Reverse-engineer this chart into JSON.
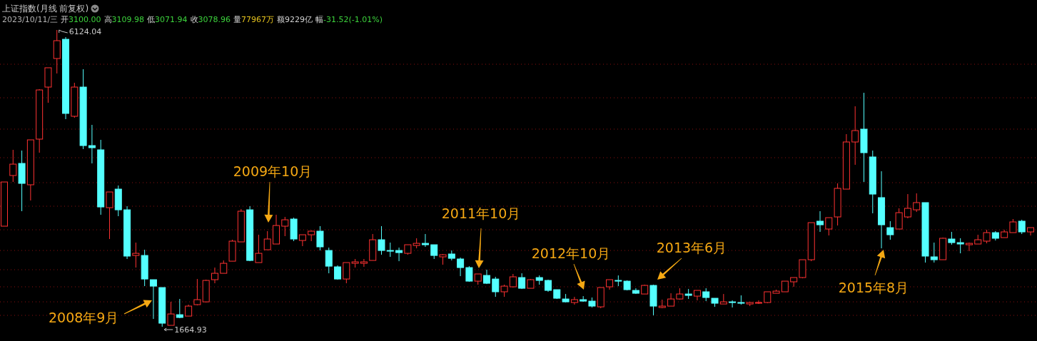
{
  "chart_data": {
    "type": "candlestick",
    "title": "上证指数(月线 前复权)",
    "subtitle": "2023/10/11/三 开3100.00 高3109.98 低3071.94 收3078.96 量77967万 额9229亿 幅-31.52(-1.01%)",
    "categories": [
      null,
      null,
      null,
      null,
      null,
      null,
      null,
      null,
      null,
      null,
      null,
      null,
      null,
      null,
      null,
      null,
      null,
      null,
      null,
      null,
      null,
      null,
      null,
      null,
      null,
      null,
      null,
      null,
      null,
      null,
      null,
      null,
      null,
      null,
      null,
      null,
      null,
      null,
      null,
      null,
      null,
      null,
      null,
      null,
      null,
      null,
      null,
      null,
      null,
      null,
      null,
      null,
      null,
      null,
      null,
      null,
      null,
      null,
      null,
      null,
      null,
      null,
      null,
      null,
      null,
      null,
      null,
      null,
      null,
      null,
      null,
      null,
      null,
      null,
      null,
      null,
      null,
      null,
      null,
      null,
      null,
      null,
      null,
      null,
      null,
      null,
      null,
      null,
      null,
      null,
      null,
      null,
      null,
      null,
      null,
      null,
      null,
      null,
      null,
      null,
      null,
      null,
      null,
      null,
      null,
      null,
      null,
      null,
      null,
      null,
      null,
      null,
      null,
      null,
      null,
      null,
      null,
      null
    ],
    "ohlc": [
      [
        3176,
        3840,
        3176,
        3840
      ],
      [
        3937,
        4323,
        3840,
        4108
      ],
      [
        4119,
        4312,
        3401,
        3819
      ],
      [
        3798,
        4473,
        3562,
        4473
      ],
      [
        4484,
        5234,
        4280,
        5223
      ],
      [
        5266,
        5556,
        5030,
        5556
      ],
      [
        5695,
        6124.04,
        5470,
        5963
      ],
      [
        5984,
        6017,
        4784,
        4870
      ],
      [
        4827,
        5330,
        4805,
        5266
      ],
      [
        5266,
        5534,
        4334,
        4387
      ],
      [
        4387,
        4698,
        4119,
        4355
      ],
      [
        4323,
        4473,
        3347,
        3465
      ],
      [
        3454,
        3690,
        2983,
        3690
      ],
      [
        3733,
        3787,
        3326,
        3422
      ],
      [
        3422,
        3476,
        2683,
        2726
      ],
      [
        2736,
        2929,
        2554,
        2768
      ],
      [
        2736,
        2822,
        2275,
        2382
      ],
      [
        2372,
        2372,
        1782,
        2275
      ],
      [
        2254,
        2254,
        1664.93,
        1718
      ],
      [
        1686,
        2039,
        1686,
        1857
      ],
      [
        1846,
        2082,
        1793,
        1804
      ],
      [
        1825,
        1997,
        1825,
        1975
      ],
      [
        1997,
        2382,
        1986,
        2072
      ],
      [
        2039,
        2372,
        2029,
        2361
      ],
      [
        2372,
        2554,
        2318,
        2468
      ],
      [
        2468,
        2661,
        2468,
        2618
      ],
      [
        2650,
        2972,
        2650,
        2951
      ],
      [
        2940,
        3433,
        2940,
        3401
      ],
      [
        3422,
        3476,
        2650,
        2661
      ],
      [
        2629,
        3047,
        2629,
        2768
      ],
      [
        2822,
        3101,
        2822,
        2983
      ],
      [
        2908,
        3347,
        2908,
        3186
      ],
      [
        3176,
        3315,
        3026,
        3272
      ],
      [
        3283,
        3304,
        2951,
        2983
      ],
      [
        2961,
        3047,
        2876,
        3047
      ],
      [
        3047,
        3111,
        2951,
        3101
      ],
      [
        3101,
        3176,
        2811,
        2865
      ],
      [
        2811,
        2854,
        2468,
        2575
      ],
      [
        2565,
        2586,
        2372,
        2382
      ],
      [
        2382,
        2629,
        2318,
        2629
      ],
      [
        2618,
        2683,
        2554,
        2640
      ],
      [
        2618,
        2683,
        2565,
        2640
      ],
      [
        2661,
        3058,
        2661,
        2972
      ],
      [
        2972,
        3176,
        2747,
        2811
      ],
      [
        2811,
        2929,
        2715,
        2801
      ],
      [
        2811,
        2854,
        2650,
        2779
      ],
      [
        2768,
        2897,
        2747,
        2897
      ],
      [
        2886,
        2994,
        2843,
        2918
      ],
      [
        2918,
        3058,
        2865,
        2897
      ],
      [
        2897,
        2897,
        2683,
        2736
      ],
      [
        2715,
        2758,
        2597,
        2747
      ],
      [
        2758,
        2811,
        2661,
        2693
      ],
      [
        2683,
        2704,
        2425,
        2554
      ],
      [
        2554,
        2575,
        2340,
        2350
      ],
      [
        2350,
        2458,
        2297,
        2458
      ],
      [
        2436,
        2522,
        2307,
        2318
      ],
      [
        2382,
        2415,
        2114,
        2190
      ],
      [
        2190,
        2297,
        2114,
        2275
      ],
      [
        2265,
        2458,
        2254,
        2415
      ],
      [
        2404,
        2468,
        2232,
        2243
      ],
      [
        2243,
        2382,
        2243,
        2372
      ],
      [
        2404,
        2436,
        2297,
        2361
      ],
      [
        2361,
        2372,
        2190,
        2211
      ],
      [
        2222,
        2222,
        2082,
        2093
      ],
      [
        2082,
        2157,
        2029,
        2039
      ],
      [
        2029,
        2114,
        1997,
        2072
      ],
      [
        2072,
        2125,
        2039,
        2050
      ],
      [
        2050,
        2104,
        1954,
        1975
      ],
      [
        1964,
        2254,
        1943,
        2254
      ],
      [
        2265,
        2372,
        2222,
        2372
      ],
      [
        2361,
        2436,
        2275,
        2350
      ],
      [
        2350,
        2361,
        2211,
        2222
      ],
      [
        2211,
        2243,
        2157,
        2168
      ],
      [
        2157,
        2297,
        2157,
        2286
      ],
      [
        2286,
        2297,
        1836,
        1975
      ],
      [
        1954,
        2072,
        1943,
        1975
      ],
      [
        1975,
        2168,
        1975,
        2082
      ],
      [
        2082,
        2243,
        2072,
        2157
      ],
      [
        2157,
        2232,
        2082,
        2136
      ],
      [
        2125,
        2211,
        2061,
        2211
      ],
      [
        2190,
        2243,
        2050,
        2104
      ],
      [
        2093,
        2093,
        1964,
        2018
      ],
      [
        2007,
        2157,
        2007,
        2039
      ],
      [
        2039,
        2061,
        1954,
        2029
      ],
      [
        2029,
        2136,
        1997,
        2018
      ],
      [
        2007,
        2039,
        1975,
        2029
      ],
      [
        2024,
        2061,
        2007,
        2029
      ],
      [
        2029,
        2190,
        2018,
        2190
      ],
      [
        2168,
        2222,
        2168,
        2200
      ],
      [
        2190,
        2350,
        2190,
        2350
      ],
      [
        2340,
        2404,
        2265,
        2404
      ],
      [
        2404,
        2672,
        2393,
        2672
      ],
      [
        2672,
        3229,
        2650,
        3229
      ],
      [
        3251,
        3401,
        3090,
        3197
      ],
      [
        3133,
        3304,
        3036,
        3304
      ],
      [
        3315,
        3819,
        3186,
        3744
      ],
      [
        3733,
        4559,
        3733,
        4441
      ],
      [
        4441,
        4977,
        4098,
        4612
      ],
      [
        4634,
        5180,
        3840,
        4280
      ],
      [
        4216,
        4312,
        3369,
        3658
      ],
      [
        3605,
        4001,
        2843,
        3197
      ],
      [
        3154,
        3251,
        2972,
        3047
      ],
      [
        3133,
        3444,
        3133,
        3379
      ],
      [
        3315,
        3658,
        3294,
        3444
      ],
      [
        3422,
        3669,
        3390,
        3530
      ],
      [
        3530,
        3530,
        2629,
        2726
      ],
      [
        2715,
        2929,
        2629,
        2672
      ],
      [
        2672,
        3004,
        2672,
        2994
      ],
      [
        2983,
        3090,
        2897,
        2929
      ],
      [
        2929,
        2994,
        2768,
        2908
      ],
      [
        2897,
        2929,
        2801,
        2918
      ],
      [
        2908,
        3047,
        2908,
        2972
      ],
      [
        2951,
        3122,
        2918,
        3079
      ],
      [
        3079,
        3101,
        2961,
        2994
      ],
      [
        3004,
        3122,
        3004,
        3090
      ],
      [
        3079,
        3283,
        3079,
        3240
      ],
      [
        3251,
        3272,
        3058,
        3090
      ],
      [
        3090,
        3154,
        3036,
        3154
      ]
    ],
    "colors": [
      "#ff3232",
      "#ff3232",
      "#54ffff",
      "#ff3232",
      "#ff3232",
      "#ff3232",
      "#ff3232",
      "#54ffff",
      "#ff3232",
      "#54ffff",
      "#54ffff",
      "#54ffff",
      "#ff3232",
      "#54ffff",
      "#54ffff",
      "#ff3232",
      "#54ffff",
      "#54ffff",
      "#54ffff",
      "#ff3232",
      "#54ffff",
      "#ff3232",
      "#ff3232",
      "#ff3232",
      "#ff3232",
      "#ff3232",
      "#ff3232",
      "#ff3232",
      "#54ffff",
      "#ff3232",
      "#ff3232",
      "#ff3232",
      "#ff3232",
      "#54ffff",
      "#ff3232",
      "#ff3232",
      "#54ffff",
      "#54ffff",
      "#54ffff",
      "#ff3232",
      "#ff3232",
      "#ff3232",
      "#ff3232",
      "#54ffff",
      "#54ffff",
      "#54ffff",
      "#ff3232",
      "#ff3232",
      "#54ffff",
      "#54ffff",
      "#ff3232",
      "#54ffff",
      "#54ffff",
      "#54ffff",
      "#ff3232",
      "#54ffff",
      "#54ffff",
      "#ff3232",
      "#ff3232",
      "#54ffff",
      "#ff3232",
      "#54ffff",
      "#54ffff",
      "#54ffff",
      "#54ffff",
      "#ff3232",
      "#54ffff",
      "#54ffff",
      "#ff3232",
      "#ff3232",
      "#54ffff",
      "#54ffff",
      "#54ffff",
      "#ff3232",
      "#54ffff",
      "#ff3232",
      "#ff3232",
      "#ff3232",
      "#54ffff",
      "#ff3232",
      "#54ffff",
      "#54ffff",
      "#ff3232",
      "#54ffff",
      "#54ffff",
      "#ff3232",
      "#ff3232",
      "#ff3232",
      "#ff3232",
      "#ff3232",
      "#ff3232",
      "#ff3232",
      "#ff3232",
      "#54ffff",
      "#ff3232",
      "#ff3232",
      "#ff3232",
      "#ff3232",
      "#54ffff",
      "#54ffff",
      "#54ffff",
      "#54ffff",
      "#ff3232",
      "#ff3232",
      "#ff3232",
      "#54ffff",
      "#54ffff",
      "#ff3232",
      "#54ffff",
      "#54ffff",
      "#ff3232",
      "#ff3232",
      "#ff3232",
      "#54ffff",
      "#ff3232",
      "#ff3232",
      "#54ffff",
      "#ff3232"
    ],
    "annotations": [
      "6124.04",
      "1664.93",
      "2008年9月",
      "2009年10月",
      "2011年10月",
      "2012年10月",
      "2013年6月",
      "2015年8月"
    ],
    "grid": "y",
    "yticks": [
      {
        "value": 5609,
        "label": null
      },
      {
        "value": 5105,
        "label": null
      },
      {
        "value": 4634,
        "label": null
      },
      {
        "value": 4205,
        "label": null
      },
      {
        "value": 3830,
        "label": null
      },
      {
        "value": 3476,
        "label": null
      },
      {
        "value": 3122,
        "label": null
      },
      {
        "value": 2811,
        "label": null
      },
      {
        "value": 2522,
        "label": null
      },
      {
        "value": 2265,
        "label": null
      },
      {
        "value": 2039,
        "label": null
      },
      {
        "value": 1836,
        "label": null
      }
    ]
  }
}
